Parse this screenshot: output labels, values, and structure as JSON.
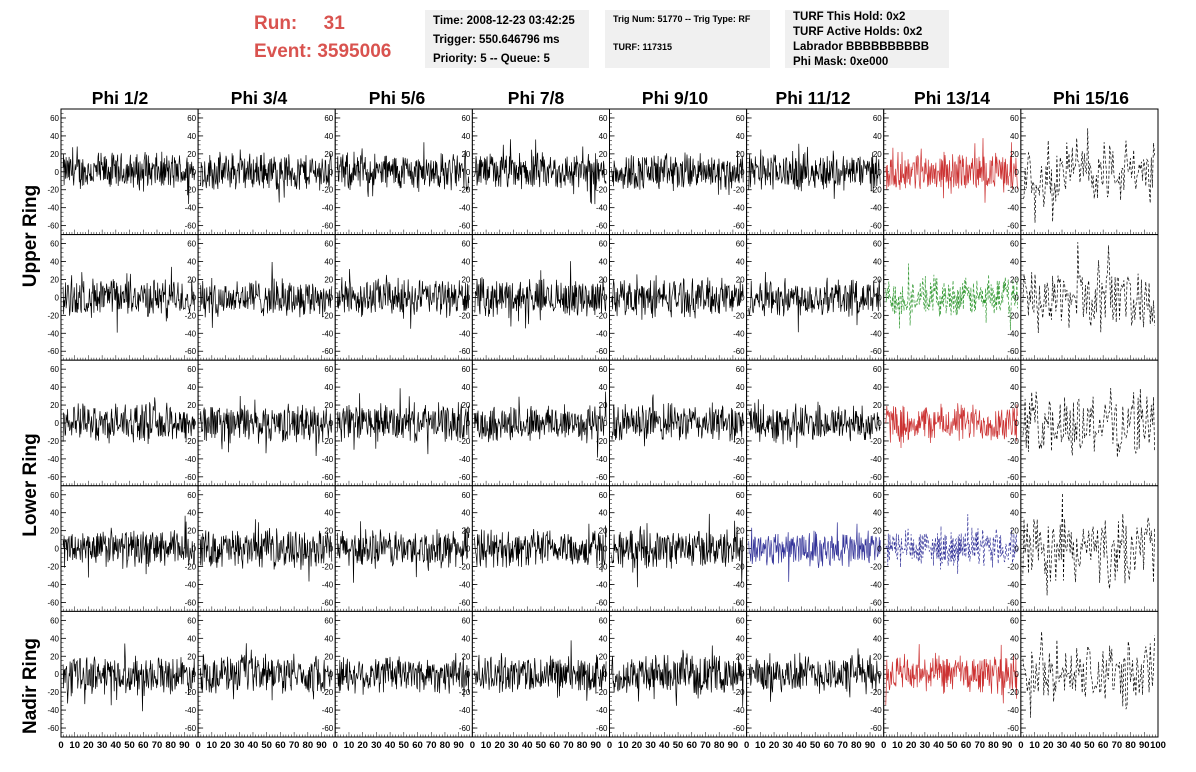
{
  "header": {
    "run_label": "Run:",
    "run_value": "31",
    "event_label": "Event:",
    "event_value": "3595006",
    "time_line": "Time: 2008-12-23 03:42:25",
    "trigger_line": "Trigger: 550.646796 ms",
    "priority_line": "Priority: 5 -- Queue: 5",
    "trig_line": "Trig Num: 51770 -- Trig Type: RF",
    "turf_line": "TURF: 117315",
    "turf_hold_line": "TURF This Hold: 0x2",
    "turf_active_line": "TURF Active Holds: 0x2",
    "labrador_line": "Labrador BBBBBBBBBB",
    "phi_mask_line": "Phi Mask: 0xe000"
  },
  "chart_data": {
    "type": "line",
    "columns": [
      "Phi 1/2",
      "Phi 3/4",
      "Phi 5/6",
      "Phi 7/8",
      "Phi 9/10",
      "Phi 11/12",
      "Phi 13/14",
      "Phi 15/16"
    ],
    "row_groups": [
      "Upper Ring",
      "Lower Ring",
      "Nadir Ring"
    ],
    "rows": 5,
    "xlim": [
      0,
      100
    ],
    "ylim": [
      -70,
      70
    ],
    "y_ticks": [
      -60,
      -40,
      -20,
      0,
      20,
      40,
      60
    ],
    "x_ticks": [
      0,
      10,
      20,
      30,
      40,
      50,
      60,
      70,
      80,
      90,
      100
    ],
    "highlights": [
      {
        "row": 0,
        "col": 6,
        "color": "#cc3333",
        "style": "solid"
      },
      {
        "row": 1,
        "col": 6,
        "color": "#339933",
        "style": "dashed"
      },
      {
        "row": 2,
        "col": 6,
        "color": "#cc3333",
        "style": "solid"
      },
      {
        "row": 3,
        "col": 5,
        "color": "#333399",
        "style": "solid"
      },
      {
        "row": 3,
        "col": 6,
        "color": "#333399",
        "style": "dashed"
      },
      {
        "row": 4,
        "col": 6,
        "color": "#cc3333",
        "style": "solid"
      }
    ],
    "dashed_column": 7,
    "waveform_amplitude": {
      "typical": 20,
      "dashed_column": 35
    }
  }
}
